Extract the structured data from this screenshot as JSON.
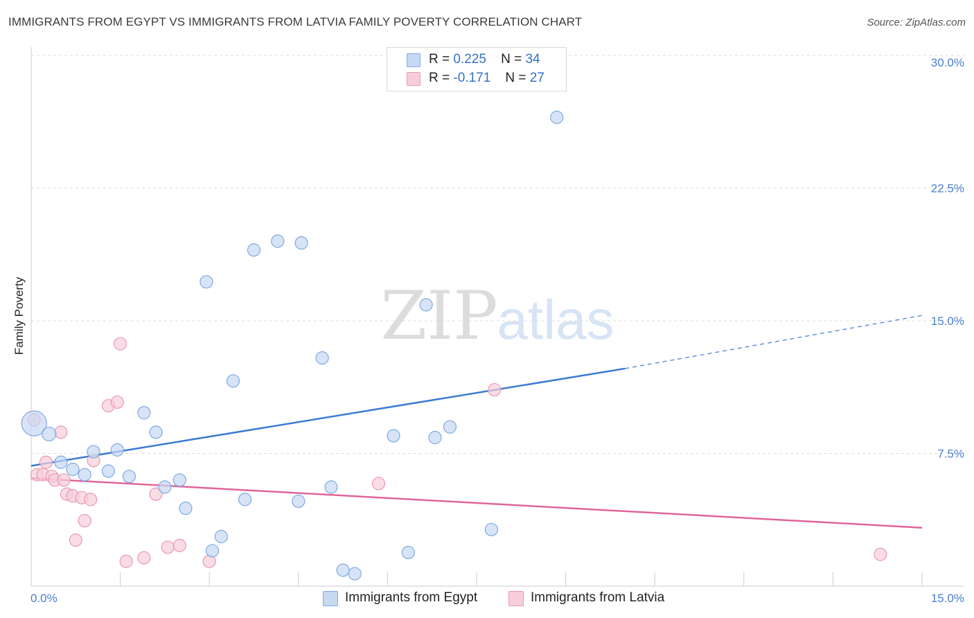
{
  "chart_data": {
    "type": "scatter",
    "title": "IMMIGRANTS FROM EGYPT VS IMMIGRANTS FROM LATVIA FAMILY POVERTY CORRELATION CHART",
    "source": "Source: ZipAtlas.com",
    "xlabel": "",
    "ylabel": "Family Poverty",
    "xlim": [
      0,
      15
    ],
    "ylim": [
      0,
      30
    ],
    "x_tick_labels": [
      "0.0%",
      "15.0%"
    ],
    "y_ticks": [
      7.5,
      15.0,
      22.5,
      30.0
    ],
    "y_tick_labels": [
      "7.5%",
      "15.0%",
      "22.5%",
      "30.0%"
    ],
    "legend": [
      {
        "r_label": "R =",
        "r_value": "0.225",
        "n_label": "N =",
        "n_value": "34"
      },
      {
        "r_label": "R =",
        "r_value": "-0.171",
        "n_label": "N =",
        "n_value": "27"
      }
    ],
    "series": [
      {
        "name": "Immigrants from Egypt",
        "color": "#7fa8e0",
        "fill": "#c6d9f3",
        "line_color": "#3a7ad4",
        "trend": {
          "x0": 0,
          "y0": 6.8,
          "x1": 10.0,
          "y1": 12.3,
          "x_dash_end": 15.0,
          "y_dash_end": 15.3
        },
        "points": [
          [
            0.05,
            9.2,
            18
          ],
          [
            0.3,
            8.6,
            10
          ],
          [
            0.5,
            7.0,
            9
          ],
          [
            0.7,
            6.6,
            9
          ],
          [
            0.9,
            6.3,
            9
          ],
          [
            1.05,
            7.6,
            9
          ],
          [
            1.3,
            6.5,
            9
          ],
          [
            1.45,
            7.7,
            9
          ],
          [
            1.65,
            6.2,
            9
          ],
          [
            1.9,
            9.8,
            9
          ],
          [
            2.1,
            8.7,
            9
          ],
          [
            2.25,
            5.6,
            9
          ],
          [
            2.5,
            6.0,
            9
          ],
          [
            2.6,
            4.4,
            9
          ],
          [
            2.95,
            17.2,
            9
          ],
          [
            3.05,
            2.0,
            9
          ],
          [
            3.2,
            2.8,
            9
          ],
          [
            3.4,
            11.6,
            9
          ],
          [
            3.6,
            4.9,
            9
          ],
          [
            3.75,
            19.0,
            9
          ],
          [
            4.15,
            19.5,
            9
          ],
          [
            4.5,
            4.8,
            9
          ],
          [
            4.55,
            19.4,
            9
          ],
          [
            4.9,
            12.9,
            9
          ],
          [
            5.05,
            5.6,
            9
          ],
          [
            5.25,
            0.9,
            9
          ],
          [
            5.45,
            0.7,
            9
          ],
          [
            6.1,
            8.5,
            9
          ],
          [
            6.35,
            1.9,
            9
          ],
          [
            6.65,
            15.9,
            9
          ],
          [
            6.8,
            8.4,
            9
          ],
          [
            7.05,
            9.0,
            9
          ],
          [
            7.75,
            3.2,
            9
          ],
          [
            8.85,
            26.5,
            9
          ]
        ]
      },
      {
        "name": "Immigrants from Latvia",
        "color": "#e89ab3",
        "fill": "#f7cdd9",
        "line_color": "#e0659a",
        "trend": {
          "x0": 0,
          "y0": 6.1,
          "x1": 15.0,
          "y1": 3.3
        },
        "points": [
          [
            0.05,
            9.4,
            9
          ],
          [
            0.1,
            6.3,
            9
          ],
          [
            0.2,
            6.3,
            9
          ],
          [
            0.25,
            7.0,
            9
          ],
          [
            0.35,
            6.2,
            9
          ],
          [
            0.4,
            6.0,
            9
          ],
          [
            0.5,
            8.7,
            9
          ],
          [
            0.55,
            6.0,
            9
          ],
          [
            0.6,
            5.2,
            9
          ],
          [
            0.7,
            5.1,
            9
          ],
          [
            0.75,
            2.6,
            9
          ],
          [
            0.85,
            5.0,
            9
          ],
          [
            0.9,
            3.7,
            9
          ],
          [
            1.0,
            4.9,
            9
          ],
          [
            1.05,
            7.1,
            9
          ],
          [
            1.3,
            10.2,
            9
          ],
          [
            1.45,
            10.4,
            9
          ],
          [
            1.5,
            13.7,
            9
          ],
          [
            1.6,
            1.4,
            9
          ],
          [
            1.9,
            1.6,
            9
          ],
          [
            2.1,
            5.2,
            9
          ],
          [
            2.3,
            2.2,
            9
          ],
          [
            2.5,
            2.3,
            9
          ],
          [
            3.0,
            1.4,
            9
          ],
          [
            5.85,
            5.8,
            9
          ],
          [
            7.8,
            11.1,
            9
          ],
          [
            14.3,
            1.8,
            9
          ]
        ]
      }
    ]
  },
  "watermark": {
    "zip": "ZIP",
    "atlas": "atlas"
  }
}
